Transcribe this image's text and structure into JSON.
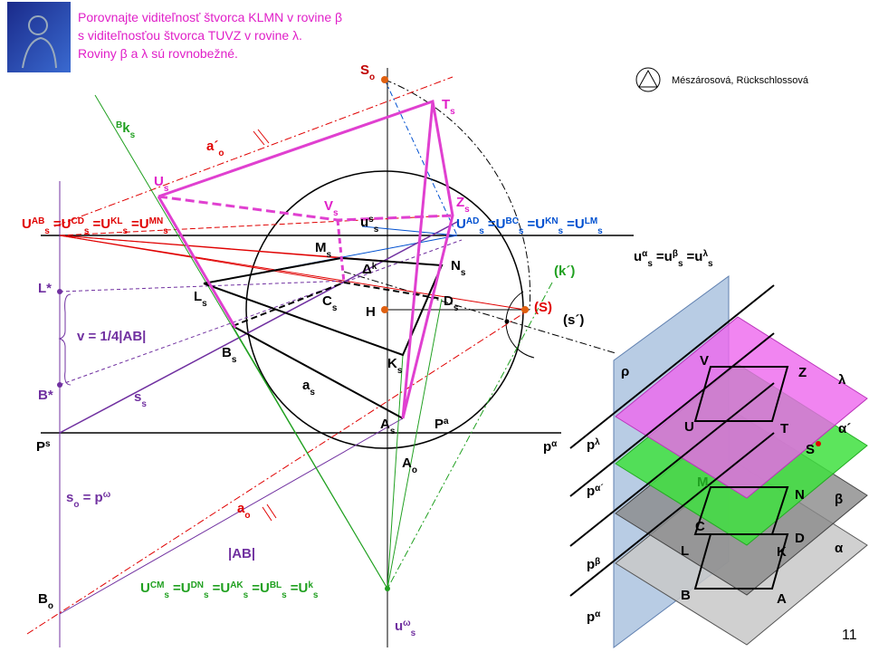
{
  "header": {
    "lines": [
      "Porovnajte viditeľnosť štvorca KLMN v rovine β",
      "s viditeľnosťou štvorca TUVZ v rovine λ.",
      "Roviny β a λ sú rovnobežné."
    ],
    "authors": "Mészárosová, Rückschlossová"
  },
  "page_number": "11",
  "labels": {
    "so": {
      "t": "S",
      "sub": "o"
    },
    "ts": {
      "t": "T",
      "sub": "s"
    },
    "us": {
      "t": "U",
      "sub": "s"
    },
    "vs": {
      "t": "V",
      "sub": "s"
    },
    "zs": {
      "t": "Z",
      "sub": "s"
    },
    "a_o_prime": {
      "t": "a´",
      "sub": "o"
    },
    "bks": {
      "pre": "B",
      "t": "k",
      "sub": "s"
    },
    "red_eq": {
      "sep": "=",
      "terms": [
        {
          "t": "U",
          "sup": "AB",
          "sub": "s"
        },
        {
          "t": "U",
          "sup": "CD",
          "sub": "s"
        },
        {
          "t": "U",
          "sup": "KL",
          "sub": "s"
        },
        {
          "t": "U",
          "sup": "MN",
          "sub": "s"
        }
      ]
    },
    "ulambda": {
      "t": "u",
      "sup": "s",
      "sub": "s"
    },
    "blue_eq": {
      "sep": "=",
      "terms": [
        {
          "t": "U",
          "sup": "AD",
          "sub": "s"
        },
        {
          "t": "U",
          "sup": "BC",
          "sub": "s"
        },
        {
          "t": "U",
          "sup": "KN",
          "sub": "s"
        },
        {
          "t": "U",
          "sup": "LM",
          "sub": "s"
        }
      ]
    },
    "u_eq": {
      "sep": "=",
      "terms": [
        {
          "t": "u",
          "sup": "α",
          "sub": "s"
        },
        {
          "t": "u",
          "sup": "β",
          "sub": "s"
        },
        {
          "t": "u",
          "sup": "λ",
          "sub": "s"
        }
      ]
    },
    "ms": {
      "t": "M",
      "sub": "s"
    },
    "ns": {
      "t": "N",
      "sub": "s"
    },
    "dk": {
      "t": "Δ",
      "sup": "k"
    },
    "lstar": {
      "t": "L*"
    },
    "ls": {
      "t": "L",
      "sub": "s"
    },
    "cs": {
      "t": "C",
      "sub": "s"
    },
    "ds": {
      "t": "D",
      "sub": "s"
    },
    "kprime": {
      "t": "(k´)"
    },
    "S_paren": {
      "t": "(S)"
    },
    "h": {
      "t": "H"
    },
    "sprime": {
      "t": "(s´)"
    },
    "v": {
      "t": "v = 1/4|AB|"
    },
    "bs": {
      "t": "B",
      "sub": "s"
    },
    "ks": {
      "t": "K",
      "sub": "s"
    },
    "as_": {
      "t": "a",
      "sub": "s"
    },
    "bstar": {
      "t": "B*"
    },
    "ss": {
      "t": "s",
      "sub": "s"
    },
    "as_pt": {
      "t": "A",
      "sub": "s"
    },
    "pa": {
      "t": "P",
      "sup": "a"
    },
    "ps": {
      "t": "P",
      "sup": "s"
    },
    "palpha": {
      "t": "p",
      "sup": "α"
    },
    "ao_pt": {
      "t": "A",
      "sub": "o"
    },
    "so_eq": {
      "t": "s",
      "sub": "o",
      "rest": " = p",
      "sup2": "ω"
    },
    "ao": {
      "t": "a",
      "sub": "o"
    },
    "ab": {
      "t": "|AB|"
    },
    "bo": {
      "t": "B",
      "sub": "o"
    },
    "green_eq": {
      "sep": "=",
      "terms": [
        {
          "t": "U",
          "sup": "CM",
          "sub": "s"
        },
        {
          "t": "U",
          "sup": "DN",
          "sub": "s"
        },
        {
          "t": "U",
          "sup": "AK",
          "sub": "s"
        },
        {
          "t": "U",
          "sup": "BL",
          "sub": "s"
        },
        {
          "t": "U",
          "sup": "k",
          "sub": "s"
        }
      ]
    },
    "uomega": {
      "t": "u",
      "sup": "ω",
      "sub": "s"
    }
  },
  "model": {
    "rho": {
      "t": "ρ"
    },
    "V": {
      "t": "V"
    },
    "Z": {
      "t": "Z"
    },
    "lambda": {
      "t": "λ"
    },
    "U": {
      "t": "U"
    },
    "T": {
      "t": "T"
    },
    "alpha_prime": {
      "t": "α´"
    },
    "S": {
      "t": "S"
    },
    "p_lambda": {
      "t": "p",
      "sup": "λ"
    },
    "M": {
      "t": "M"
    },
    "N": {
      "t": "N"
    },
    "beta": {
      "t": "β"
    },
    "p_alpha_prime": {
      "t": "p",
      "sup": "α´"
    },
    "C": {
      "t": "C"
    },
    "D": {
      "t": "D"
    },
    "alpha": {
      "t": "α"
    },
    "L": {
      "t": "L"
    },
    "K": {
      "t": "K"
    },
    "p_beta": {
      "t": "p",
      "sup": "β"
    },
    "B": {
      "t": "B"
    },
    "A": {
      "t": "A"
    },
    "p_alpha": {
      "t": "p",
      "sup": "α"
    }
  }
}
